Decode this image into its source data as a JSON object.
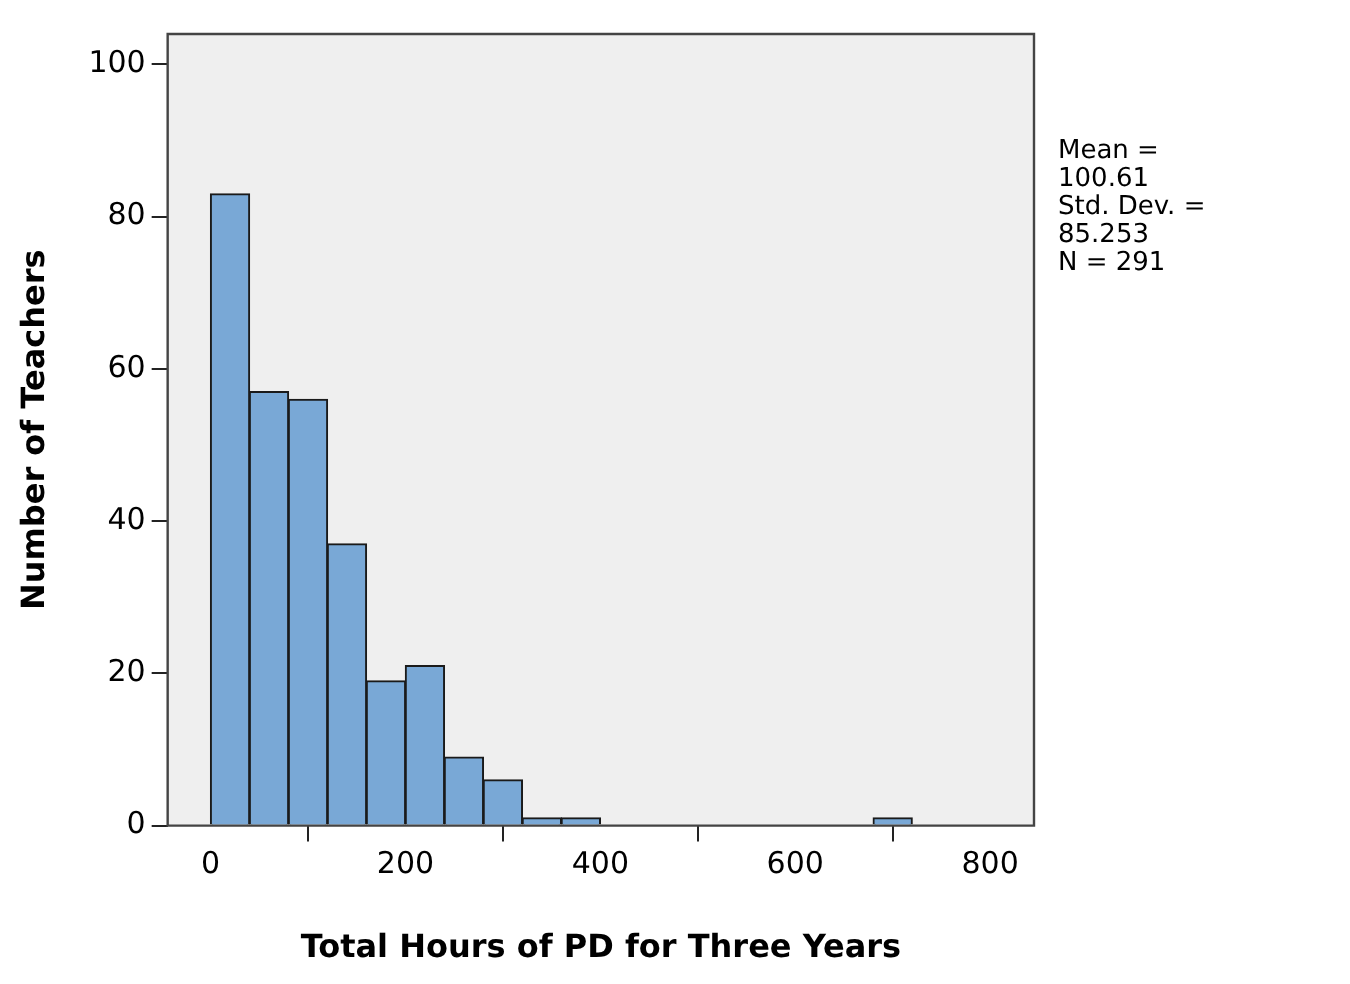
{
  "chart_data": {
    "type": "histogram",
    "xlabel": "Total Hours of PD for Three Years",
    "ylabel": "Number of Teachers",
    "bins": [
      0,
      40,
      80,
      120,
      160,
      200,
      240,
      280,
      320,
      360,
      400,
      440,
      480,
      520,
      560,
      600,
      640,
      680,
      720
    ],
    "values": [
      83,
      57,
      56,
      37,
      19,
      21,
      9,
      6,
      1,
      1,
      0,
      0,
      0,
      0,
      0,
      0,
      0,
      1
    ],
    "color": "#79a8d6",
    "xlim": [
      -44,
      845
    ],
    "xticks": [
      0,
      200,
      400,
      600,
      800
    ],
    "ylim": [
      0,
      104
    ],
    "yticks": [
      0,
      20,
      40,
      60,
      80,
      100
    ],
    "grid": false,
    "legend": false,
    "annotations": [
      "Mean = 100.61",
      "Std. Dev. = 85.253",
      "N = 291"
    ]
  }
}
